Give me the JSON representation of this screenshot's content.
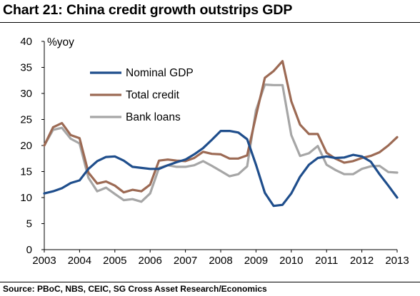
{
  "title": "Chart 21: China credit growth outstrips GDP",
  "source": "Source: PBoC, NBS, CEIC, SG Cross Asset Research/Economics",
  "chart_data": {
    "type": "line",
    "unit_label": "%yoy",
    "ylim": [
      0,
      40
    ],
    "y_ticks": [
      0,
      5,
      10,
      15,
      20,
      25,
      30,
      35,
      40
    ],
    "xlim": [
      2003,
      2013
    ],
    "x_ticks": [
      2003,
      2004,
      2005,
      2006,
      2007,
      2008,
      2009,
      2010,
      2011,
      2012,
      2013
    ],
    "grid": false,
    "legend_position": "top-left",
    "series": [
      {
        "name": "Nominal GDP",
        "color": "#1f4e8c",
        "x": [
          2003.0,
          2003.25,
          2003.5,
          2003.75,
          2004.0,
          2004.25,
          2004.5,
          2004.75,
          2005.0,
          2005.25,
          2005.5,
          2005.75,
          2006.0,
          2006.25,
          2006.5,
          2006.75,
          2007.0,
          2007.25,
          2007.5,
          2007.75,
          2008.0,
          2008.25,
          2008.5,
          2008.75,
          2009.0,
          2009.25,
          2009.5,
          2009.75,
          2010.0,
          2010.25,
          2010.5,
          2010.75,
          2011.0,
          2011.25,
          2011.5,
          2011.75,
          2012.0,
          2012.25,
          2012.5,
          2012.75,
          2013.0
        ],
        "values": [
          10.8,
          11.2,
          11.8,
          12.8,
          13.3,
          15.5,
          17.0,
          17.8,
          17.9,
          17.1,
          15.9,
          15.7,
          15.5,
          15.5,
          16.2,
          16.8,
          17.3,
          18.3,
          19.5,
          21.1,
          22.8,
          22.8,
          22.5,
          21.2,
          16.3,
          10.9,
          8.4,
          8.6,
          10.8,
          14.0,
          16.3,
          17.6,
          17.9,
          17.6,
          17.7,
          18.2,
          17.9,
          16.9,
          14.5,
          12.3,
          10.0
        ]
      },
      {
        "name": "Total credit",
        "color": "#9c6a54",
        "x": [
          2003.0,
          2003.25,
          2003.5,
          2003.75,
          2004.0,
          2004.25,
          2004.5,
          2004.75,
          2005.0,
          2005.25,
          2005.5,
          2005.75,
          2006.0,
          2006.25,
          2006.5,
          2006.75,
          2007.0,
          2007.25,
          2007.5,
          2007.75,
          2008.0,
          2008.25,
          2008.5,
          2008.75,
          2009.0,
          2009.25,
          2009.5,
          2009.75,
          2010.0,
          2010.25,
          2010.5,
          2010.75,
          2011.0,
          2011.25,
          2011.5,
          2011.75,
          2012.0,
          2012.25,
          2012.5,
          2012.75,
          2013.0
        ],
        "values": [
          20.0,
          23.5,
          24.3,
          22.0,
          21.4,
          14.8,
          12.7,
          13.1,
          12.3,
          11.0,
          11.5,
          11.2,
          12.5,
          17.1,
          17.3,
          17.1,
          17.0,
          17.6,
          18.8,
          18.4,
          18.3,
          17.5,
          17.5,
          18.1,
          25.7,
          33.0,
          34.3,
          36.2,
          28.5,
          24.0,
          22.2,
          22.2,
          18.6,
          17.5,
          16.7,
          17.0,
          17.6,
          18.0,
          18.7,
          20.0,
          21.6
        ]
      },
      {
        "name": "Bank loans",
        "color": "#a6a6a6",
        "x": [
          2003.0,
          2003.25,
          2003.5,
          2003.75,
          2004.0,
          2004.25,
          2004.5,
          2004.75,
          2005.0,
          2005.25,
          2005.5,
          2005.75,
          2006.0,
          2006.25,
          2006.5,
          2006.75,
          2007.0,
          2007.25,
          2007.5,
          2007.75,
          2008.0,
          2008.25,
          2008.5,
          2008.75,
          2009.0,
          2009.25,
          2009.5,
          2009.75,
          2010.0,
          2010.25,
          2010.5,
          2010.75,
          2011.0,
          2011.25,
          2011.5,
          2011.75,
          2012.0,
          2012.25,
          2012.5,
          2012.75,
          2013.0
        ],
        "values": [
          20.0,
          23.0,
          23.4,
          21.3,
          20.4,
          13.8,
          11.2,
          11.9,
          10.7,
          9.5,
          9.7,
          9.2,
          10.8,
          15.7,
          16.2,
          15.9,
          15.9,
          16.2,
          17.0,
          16.1,
          15.1,
          14.1,
          14.5,
          16.0,
          26.8,
          31.7,
          31.6,
          31.6,
          22.0,
          18.0,
          18.5,
          19.9,
          16.3,
          15.3,
          14.5,
          14.5,
          15.5,
          16.0,
          16.1,
          14.9,
          14.8
        ]
      }
    ]
  }
}
